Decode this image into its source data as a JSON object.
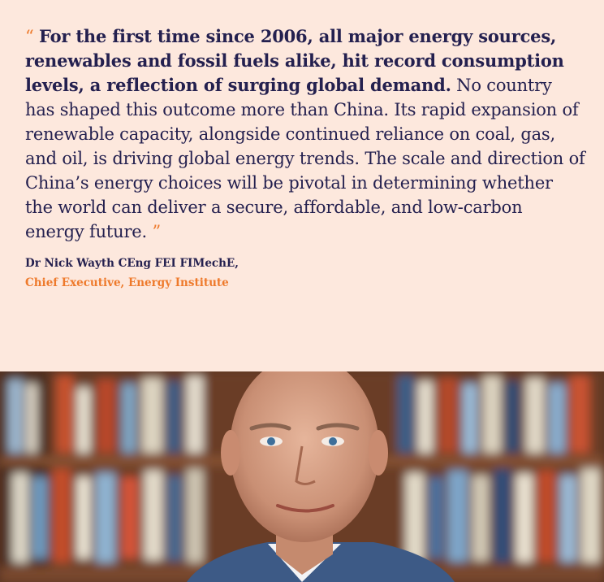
{
  "quote": {
    "open_mark": "“",
    "lead": "For the first time since 2006, all major energy sources, renewables and fossil fuels alike, hit record consumption levels, a reflection of surging global demand.",
    "body": " No country has shaped this outcome more than China. Its rapid expansion of renewable capacity, alongside continued reliance on coal, gas, and oil, is driving global energy trends. The scale and direction of China’s energy choices will be pivotal in determining whether the world can deliver a secure, affordable, and low-carbon energy future. ",
    "close_mark": "”"
  },
  "author": {
    "name": "Dr Nick Wayth CEng FEI FIMechE,",
    "role": "Chief Executive, Energy Institute"
  },
  "colors": {
    "background": "#fde8dd",
    "text": "#24204f",
    "accent": "#ee7a2c"
  }
}
